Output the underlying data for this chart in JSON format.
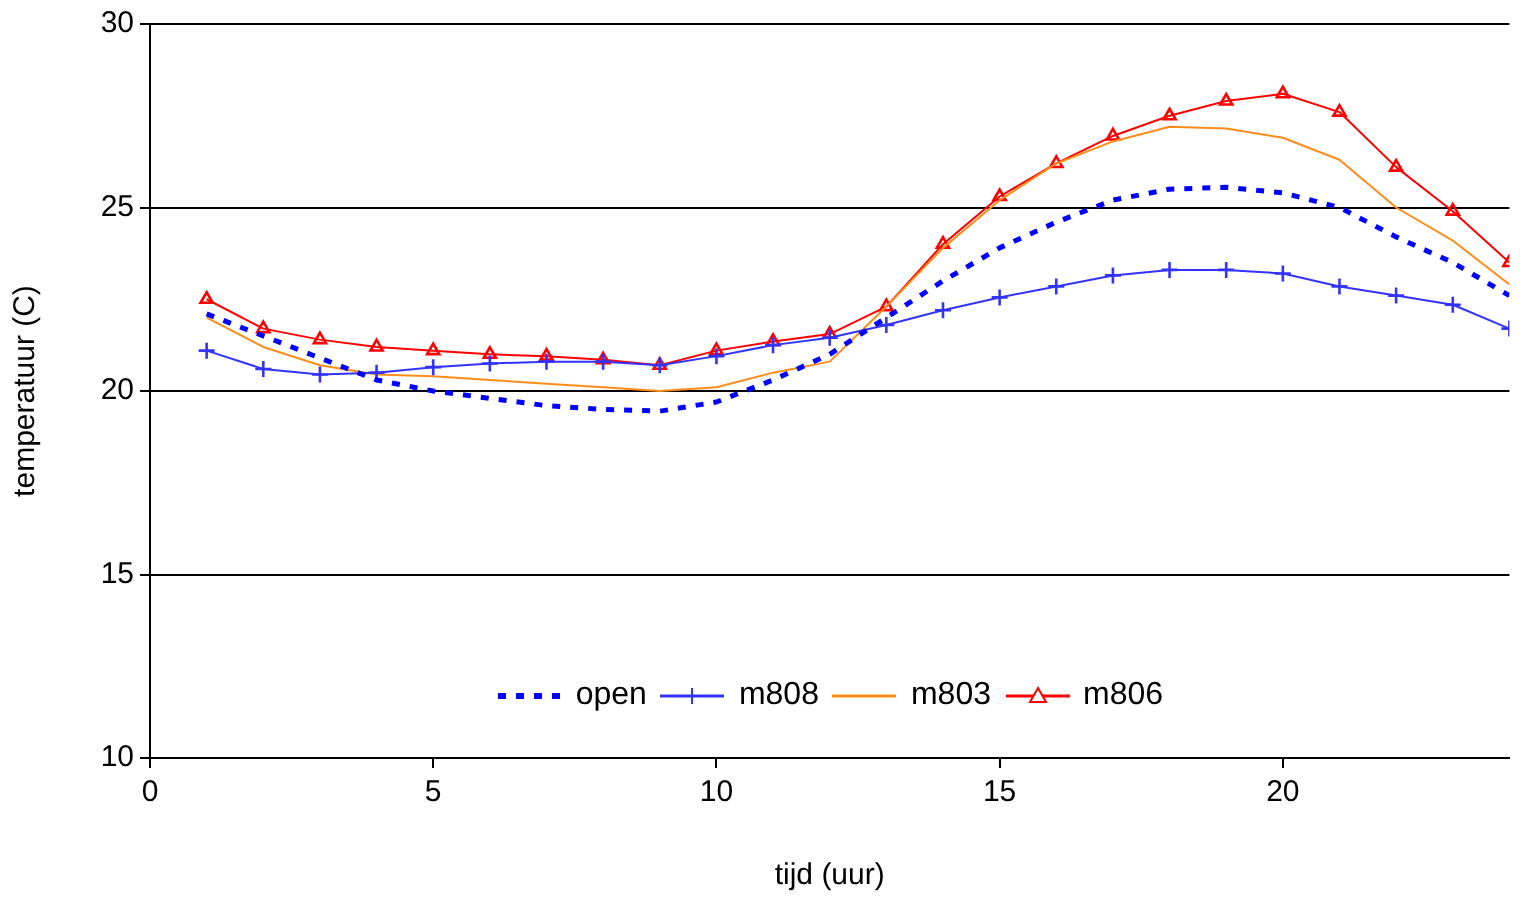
{
  "chart_data": {
    "type": "line",
    "xlabel": "tijd (uur)",
    "ylabel": "temperatuur (C)",
    "x": [
      1,
      2,
      3,
      4,
      5,
      6,
      7,
      8,
      9,
      10,
      11,
      12,
      13,
      14,
      15,
      16,
      17,
      18,
      19,
      20,
      21,
      22,
      23,
      24
    ],
    "xlim": [
      0,
      24
    ],
    "xticks": [
      0,
      5,
      10,
      15,
      20
    ],
    "ylim": [
      10,
      30
    ],
    "yticks": [
      10,
      15,
      20,
      25,
      30
    ],
    "grid": "y",
    "legend": "bottom",
    "series": [
      {
        "name": "open",
        "color": "#0000ff",
        "line_style": "dashed",
        "marker": "none",
        "values": [
          22.1,
          21.5,
          20.9,
          20.3,
          20.0,
          19.8,
          19.6,
          19.5,
          19.45,
          19.7,
          20.3,
          21.0,
          22.0,
          23.0,
          23.9,
          24.6,
          25.2,
          25.5,
          25.55,
          25.4,
          25.0,
          24.2,
          23.5,
          22.6
        ]
      },
      {
        "name": "m808",
        "color": "#3333ff",
        "line_style": "solid",
        "marker": "cross",
        "values": [
          21.1,
          20.6,
          20.45,
          20.5,
          20.65,
          20.75,
          20.8,
          20.8,
          20.7,
          20.95,
          21.25,
          21.45,
          21.8,
          22.2,
          22.55,
          22.85,
          23.15,
          23.3,
          23.3,
          23.2,
          22.85,
          22.6,
          22.35,
          21.7
        ]
      },
      {
        "name": "m803",
        "color": "#ff8c1a",
        "line_style": "solid",
        "marker": "none",
        "values": [
          22.0,
          21.2,
          20.7,
          20.45,
          20.4,
          20.3,
          20.2,
          20.1,
          20.0,
          20.1,
          20.5,
          20.8,
          22.3,
          23.9,
          25.2,
          26.2,
          26.8,
          27.2,
          27.15,
          26.9,
          26.3,
          25.0,
          24.1,
          22.9
        ]
      },
      {
        "name": "m806",
        "color": "#ff0000",
        "line_style": "solid",
        "marker": "triangle",
        "values": [
          22.5,
          21.7,
          21.4,
          21.2,
          21.1,
          21.0,
          20.95,
          20.85,
          20.7,
          21.1,
          21.35,
          21.55,
          22.3,
          24.0,
          25.3,
          26.2,
          26.95,
          27.5,
          27.9,
          28.1,
          27.6,
          26.1,
          24.9,
          23.5
        ]
      }
    ]
  }
}
